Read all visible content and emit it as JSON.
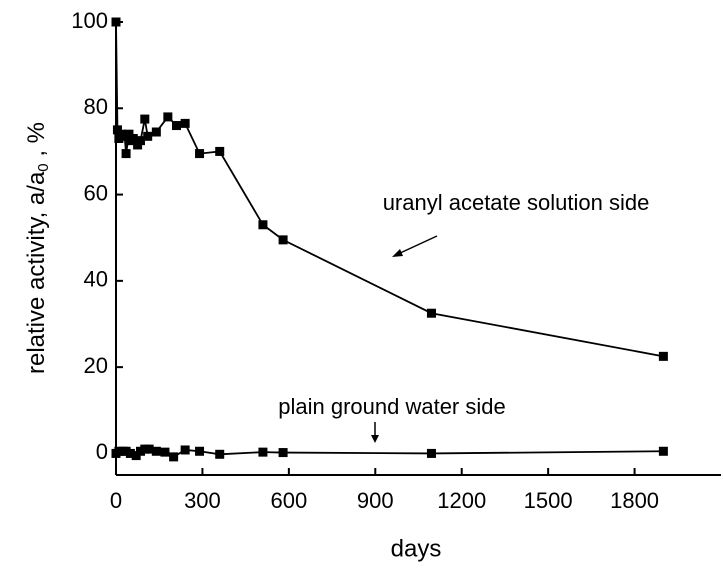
{
  "chart_data": {
    "type": "line",
    "xlabel": "days",
    "ylabel": "relative activity, a/a",
    "ylabel_sub": "0",
    "ylabel_end": " , %",
    "annotations": [
      "uranyl acetate solution side",
      "plain ground water side"
    ],
    "xlim": [
      0,
      2100
    ],
    "xticks": [
      0,
      300,
      600,
      900,
      1200,
      1500,
      1800
    ],
    "ylim": [
      -5,
      100
    ],
    "yticks": [
      0,
      20,
      40,
      60,
      80,
      100
    ],
    "series": [
      {
        "color": "#000000",
        "x": [
          0,
          5,
          10,
          20,
          30,
          35,
          45,
          50,
          60,
          75,
          85,
          100,
          110,
          140,
          180,
          210,
          240,
          290,
          360,
          510,
          580,
          1095,
          1900
        ],
        "values": [
          100,
          75,
          73,
          74,
          73.5,
          69.5,
          74,
          72.5,
          73,
          71.5,
          72.5,
          77.5,
          73.5,
          74.5,
          78,
          76,
          76.5,
          69.5,
          70,
          53,
          49.5,
          32.5,
          22.5
        ]
      },
      {
        "color": "#000000",
        "x": [
          0,
          10,
          25,
          35,
          50,
          70,
          85,
          100,
          115,
          140,
          170,
          200,
          240,
          290,
          360,
          510,
          580,
          1095,
          1900
        ],
        "values": [
          0,
          0.5,
          0.5,
          0.5,
          0,
          -0.5,
          0.5,
          1,
          1,
          0.5,
          0.3,
          -0.8,
          0.8,
          0.5,
          -0.2,
          0.3,
          0.2,
          0,
          0.5
        ]
      }
    ]
  }
}
